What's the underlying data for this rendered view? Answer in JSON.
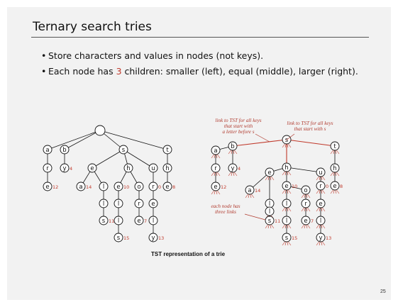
{
  "slide": {
    "title": "Ternary search tries",
    "bullets": [
      {
        "text": "Store characters and values in nodes (not keys)."
      },
      {
        "pre": "Each node has ",
        "accent": "3",
        "post": " children:  smaller (left), equal (middle), larger (right)."
      }
    ],
    "caption": "TST representation of a trie",
    "page_number": "25",
    "accent_color": "#c0392b"
  },
  "diagram": {
    "annotations": {
      "less": [
        "link to TST for all keys",
        "that start with",
        "a letter before s"
      ],
      "equal": [
        "link to TST for all keys",
        "that start with s"
      ],
      "three": [
        "each node has",
        "three links"
      ]
    }
  },
  "trie": {
    "nodes": [
      {
        "id": "root",
        "ch": ""
      },
      {
        "id": "a",
        "ch": "a"
      },
      {
        "id": "b",
        "ch": "b"
      },
      {
        "id": "s",
        "ch": "s"
      },
      {
        "id": "t",
        "ch": "t"
      },
      {
        "id": "ar",
        "ch": "r"
      },
      {
        "id": "are",
        "ch": "e",
        "val": "12"
      },
      {
        "id": "by",
        "ch": "y",
        "val": "4"
      },
      {
        "id": "se",
        "ch": "e"
      },
      {
        "id": "sh",
        "ch": "h"
      },
      {
        "id": "su",
        "ch": "u"
      },
      {
        "id": "sea",
        "ch": "a",
        "val": "14"
      },
      {
        "id": "sel",
        "ch": "l"
      },
      {
        "id": "sell",
        "ch": "l"
      },
      {
        "id": "sells",
        "ch": "s",
        "val": "11"
      },
      {
        "id": "she",
        "ch": "e",
        "val": "10"
      },
      {
        "id": "shel",
        "ch": "l"
      },
      {
        "id": "shell",
        "ch": "l"
      },
      {
        "id": "shells",
        "ch": "s",
        "val": "15"
      },
      {
        "id": "sho",
        "ch": "o"
      },
      {
        "id": "shor",
        "ch": "r"
      },
      {
        "id": "shore",
        "ch": "e",
        "val": "7"
      },
      {
        "id": "sur",
        "ch": "r",
        "val": "0"
      },
      {
        "id": "sure",
        "ch": "e"
      },
      {
        "id": "surel",
        "ch": "l"
      },
      {
        "id": "surely",
        "ch": "y",
        "val": "13"
      },
      {
        "id": "th",
        "ch": "h"
      },
      {
        "id": "the",
        "ch": "e",
        "val": "8"
      }
    ],
    "edges": [
      [
        "root",
        "a"
      ],
      [
        "root",
        "b"
      ],
      [
        "root",
        "s"
      ],
      [
        "root",
        "t"
      ],
      [
        "a",
        "ar"
      ],
      [
        "ar",
        "are"
      ],
      [
        "b",
        "by"
      ],
      [
        "s",
        "se"
      ],
      [
        "s",
        "sh"
      ],
      [
        "s",
        "su"
      ],
      [
        "se",
        "sea"
      ],
      [
        "se",
        "sel"
      ],
      [
        "sel",
        "sell"
      ],
      [
        "sell",
        "sells"
      ],
      [
        "sh",
        "she"
      ],
      [
        "sh",
        "sho"
      ],
      [
        "she",
        "shel"
      ],
      [
        "shel",
        "shell"
      ],
      [
        "shell",
        "shells"
      ],
      [
        "sho",
        "shor"
      ],
      [
        "shor",
        "shore"
      ],
      [
        "su",
        "sur"
      ],
      [
        "sur",
        "sure"
      ],
      [
        "sure",
        "surel"
      ],
      [
        "surel",
        "surely"
      ],
      [
        "t",
        "th"
      ],
      [
        "th",
        "the"
      ]
    ]
  },
  "tst": {
    "nodes": [
      {
        "id": "s",
        "ch": "s"
      },
      {
        "id": "b",
        "ch": "b"
      },
      {
        "id": "t",
        "ch": "t"
      },
      {
        "id": "a",
        "ch": "a"
      },
      {
        "id": "y",
        "ch": "y",
        "val": "4"
      },
      {
        "id": "h",
        "ch": "h"
      },
      {
        "id": "r",
        "ch": "r"
      },
      {
        "id": "e1",
        "ch": "e",
        "val": "12"
      },
      {
        "id": "e",
        "ch": "e"
      },
      {
        "id": "hh",
        "ch": "h"
      },
      {
        "id": "u",
        "ch": "u"
      },
      {
        "id": "e2",
        "ch": "e",
        "val": "10"
      },
      {
        "id": "aa",
        "ch": "a",
        "val": "14"
      },
      {
        "id": "l1",
        "ch": "l"
      },
      {
        "id": "l2",
        "ch": "l"
      },
      {
        "id": "s11",
        "ch": "s",
        "val": "11"
      },
      {
        "id": "o",
        "ch": "o"
      },
      {
        "id": "r2",
        "ch": "r"
      },
      {
        "id": "e7",
        "ch": "e",
        "val": "7"
      },
      {
        "id": "l3",
        "ch": "l"
      },
      {
        "id": "l4",
        "ch": "l"
      },
      {
        "id": "s15",
        "ch": "s",
        "val": "15"
      },
      {
        "id": "r3",
        "ch": "r",
        "val": "0"
      },
      {
        "id": "e3",
        "ch": "e"
      },
      {
        "id": "l5",
        "ch": "l"
      },
      {
        "id": "y13",
        "ch": "y",
        "val": "13"
      },
      {
        "id": "e8",
        "ch": "e",
        "val": "8"
      }
    ],
    "edges": [
      [
        "s",
        "b"
      ],
      [
        "s",
        "hh"
      ],
      [
        "s",
        "t"
      ],
      [
        "b",
        "a"
      ],
      [
        "b",
        "y"
      ],
      [
        "a",
        "r"
      ],
      [
        "r",
        "e1"
      ],
      [
        "t",
        "h"
      ],
      [
        "h",
        "e8"
      ],
      [
        "hh",
        "e"
      ],
      [
        "hh",
        "e2"
      ],
      [
        "hh",
        "u"
      ],
      [
        "e",
        "aa"
      ],
      [
        "e",
        "l1"
      ],
      [
        "l1",
        "l2"
      ],
      [
        "l2",
        "s11"
      ],
      [
        "e2",
        "o"
      ],
      [
        "e2",
        "l3"
      ],
      [
        "l3",
        "l4"
      ],
      [
        "l4",
        "s15"
      ],
      [
        "o",
        "r2"
      ],
      [
        "r2",
        "e7"
      ],
      [
        "u",
        "r3"
      ],
      [
        "r3",
        "e3"
      ],
      [
        "e3",
        "l5"
      ],
      [
        "l5",
        "y13"
      ]
    ],
    "highlighted_edges": [
      [
        "s",
        "b"
      ],
      [
        "s",
        "hh"
      ],
      [
        "s",
        "t"
      ]
    ]
  }
}
